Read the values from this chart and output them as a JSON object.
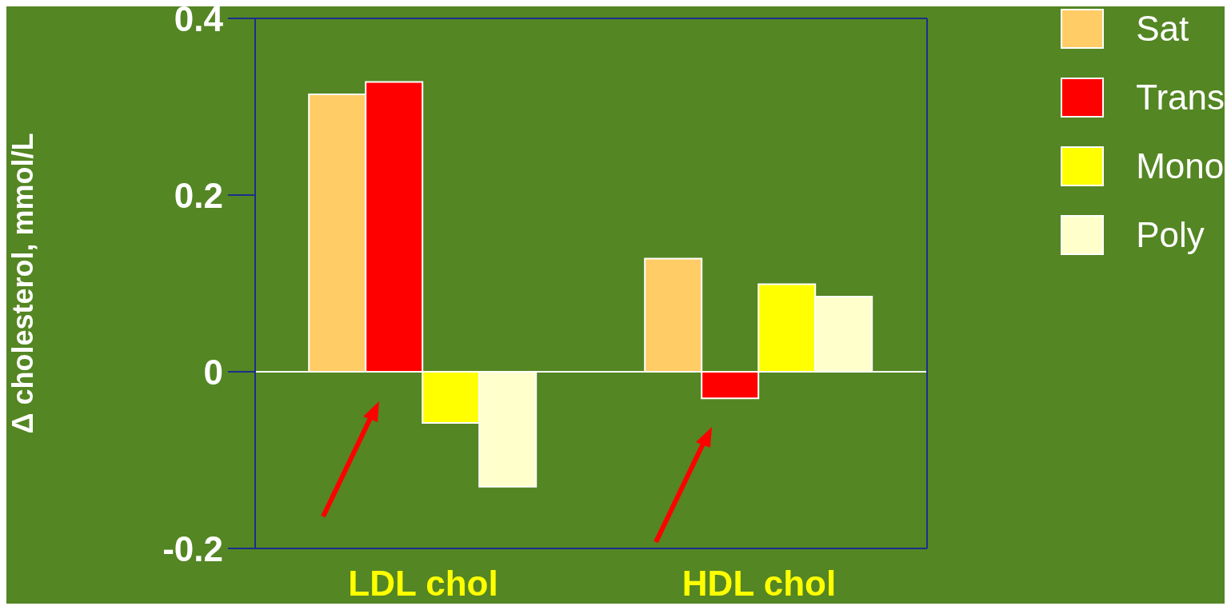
{
  "chart_data": {
    "type": "bar",
    "ylabel": "Δ cholesterol, mmol/L",
    "categories": [
      "LDL chol",
      "HDL chol"
    ],
    "series": [
      {
        "name": "Sat",
        "color": "#ffcc66",
        "values": [
          0.314,
          0.128
        ]
      },
      {
        "name": "Trans",
        "color": "#ff0000",
        "values": [
          0.328,
          -0.03
        ]
      },
      {
        "name": "Mono",
        "color": "#ffff00",
        "values": [
          -0.058,
          0.099
        ]
      },
      {
        "name": "Poly",
        "color": "#ffffcc",
        "values": [
          -0.13,
          0.085
        ]
      }
    ],
    "ylim": [
      -0.2,
      0.4
    ],
    "yticks": [
      -0.2,
      0,
      0.2,
      0.4
    ],
    "legend": "top right",
    "ref_lines": [
      {
        "axis": "y",
        "value": 0,
        "color": "#ffffff"
      }
    ]
  }
}
